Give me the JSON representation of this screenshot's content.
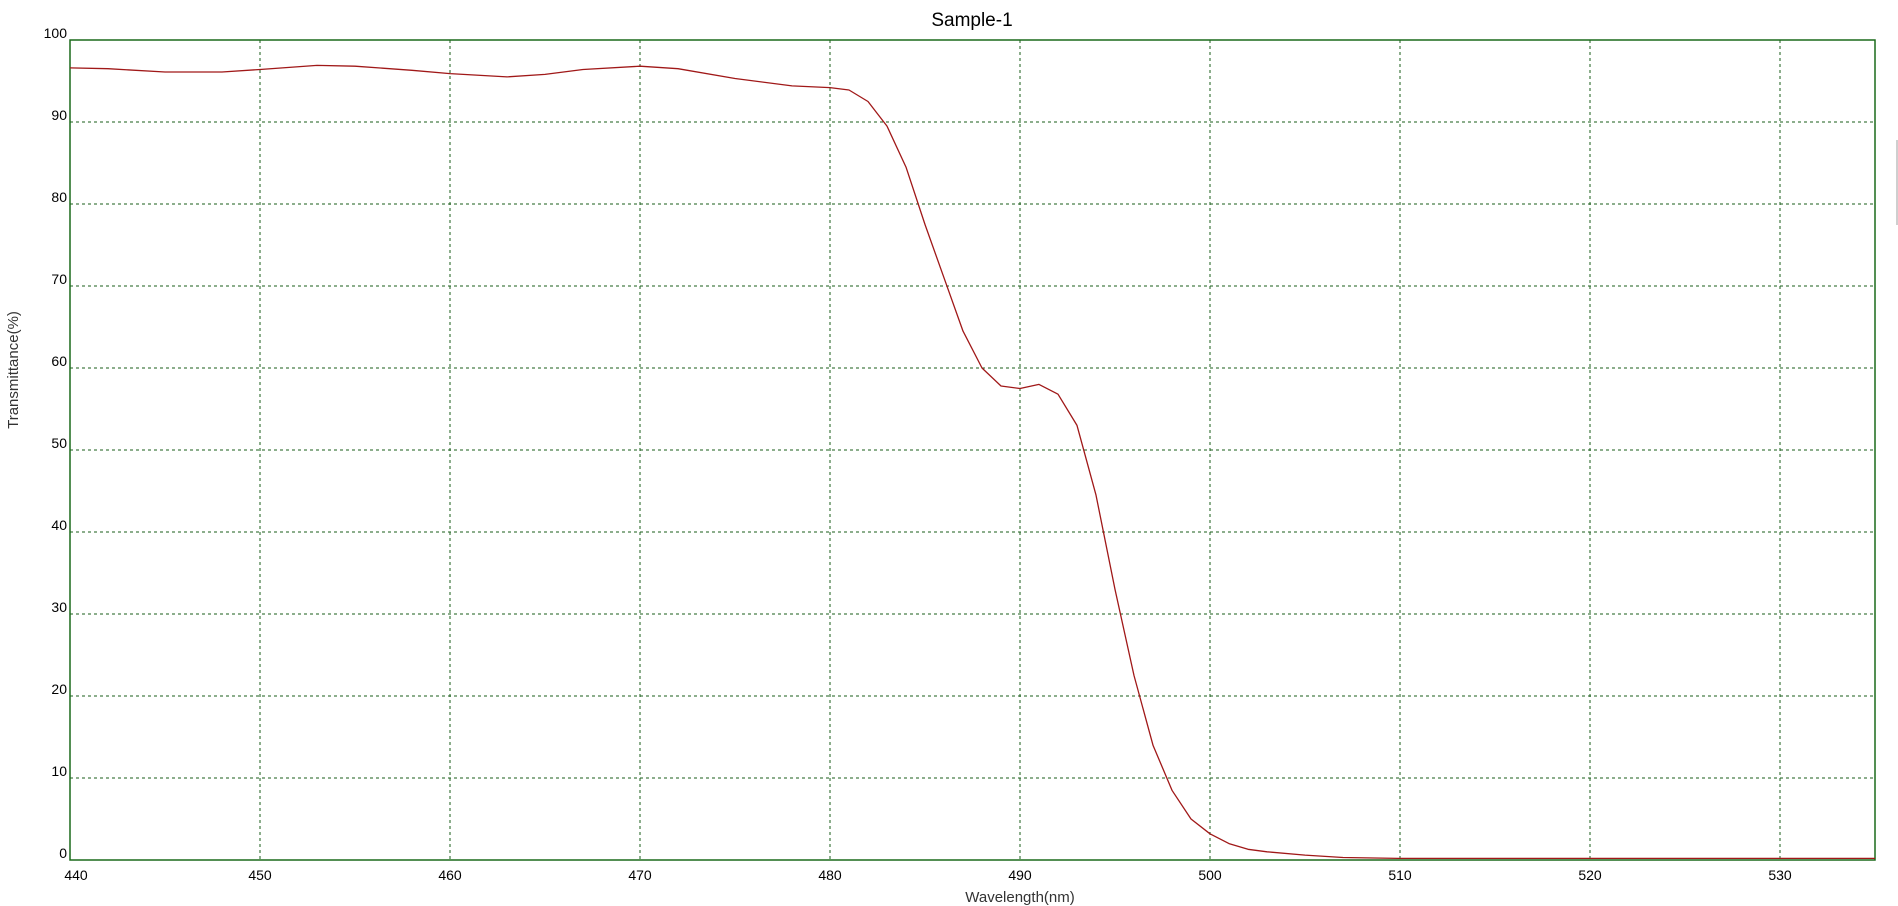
{
  "chart_data": {
    "type": "line",
    "title": "Sample-1",
    "xlabel": "Wavelength(nm)",
    "ylabel": "Transmittance(%)",
    "xlim": [
      440,
      535
    ],
    "ylim": [
      0,
      100
    ],
    "xticks": [
      440,
      450,
      460,
      470,
      480,
      490,
      500,
      510,
      520,
      530
    ],
    "yticks": [
      0,
      10,
      20,
      30,
      40,
      50,
      60,
      70,
      80,
      90,
      100
    ],
    "grid": true,
    "colors": {
      "line": "#a01818",
      "grid": "#1a5e1a",
      "frame": "#1a6a1a"
    },
    "series": [
      {
        "x": [
          440,
          442,
          445,
          448,
          450,
          453,
          455,
          458,
          460,
          463,
          465,
          467,
          470,
          472,
          475,
          478,
          480,
          481,
          482,
          483,
          484,
          485,
          486,
          487,
          488,
          489,
          490,
          491,
          492,
          493,
          494,
          495,
          496,
          497,
          498,
          499,
          500,
          501,
          502,
          503,
          505,
          507,
          510,
          520,
          535
        ],
        "y": [
          96.6,
          96.5,
          96.1,
          96.1,
          96.4,
          96.9,
          96.8,
          96.3,
          95.9,
          95.5,
          95.8,
          96.4,
          96.8,
          96.5,
          95.3,
          94.4,
          94.2,
          93.9,
          92.5,
          89.5,
          84.5,
          77.5,
          71,
          64.5,
          60,
          57.8,
          57.5,
          58,
          56.8,
          53,
          44.5,
          33,
          22.5,
          14,
          8.5,
          5,
          3.2,
          2,
          1.3,
          1.0,
          0.6,
          0.3,
          0.2,
          0.2,
          0.2
        ]
      }
    ]
  }
}
